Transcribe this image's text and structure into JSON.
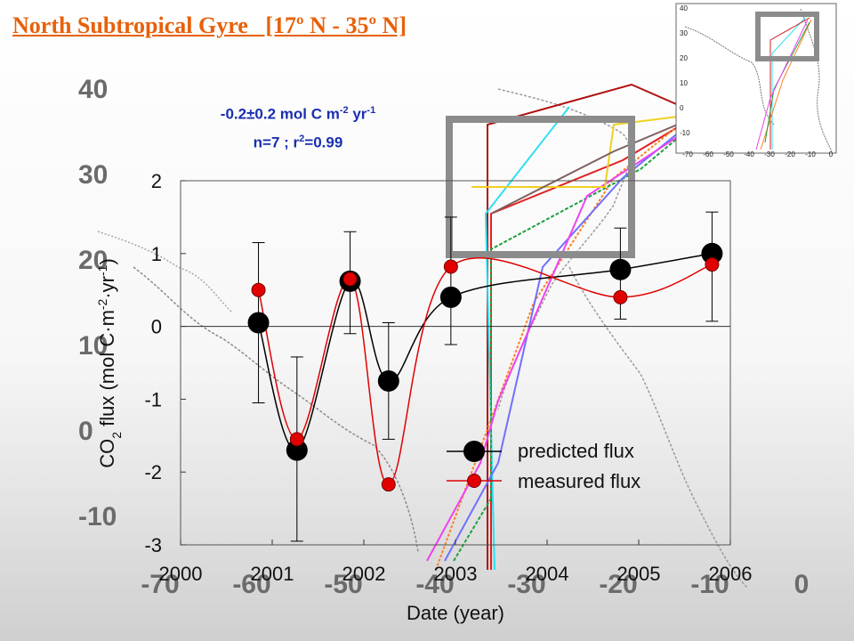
{
  "title": "North Subtropical Gyre   [17º N - 35º N]",
  "annotation": {
    "rate": "-0.2±0.2 mol C m",
    "rate_exp1": "-2",
    "rate_unit": " yr",
    "rate_exp2": "-1",
    "stats": "n=7  ;  r",
    "stats_exp": "2",
    "stats_tail": "=0.99",
    "color": "#1a2fb0"
  },
  "background_map": {
    "lat_ticks": [
      "40",
      "30",
      "20",
      "10",
      "0",
      "-10"
    ],
    "lon_ticks": [
      "-70",
      "-60",
      "-50",
      "-40",
      "-30",
      "-20",
      "-10",
      "0"
    ]
  },
  "inset_map": {
    "lat_ticks": [
      "40",
      "30",
      "20",
      "10",
      "0",
      "-10"
    ],
    "lon_ticks": [
      "-70",
      "-60",
      "-50",
      "-40",
      "-30",
      "-20",
      "-10",
      "0"
    ]
  },
  "chart_data": {
    "type": "scatter",
    "xlabel": "Date (year)",
    "ylabel": "CO2 flux (mol C·m-2·yr-1)",
    "ylabel_parts": {
      "a": "CO",
      "s1": "2",
      "b": " flux (mol C·m",
      "s2": "-2",
      "c": "·yr",
      "s3": "-1",
      "d": ")"
    },
    "xlim": [
      2000,
      2006
    ],
    "ylim": [
      -3,
      2
    ],
    "x_ticks": [
      "2000",
      "2001",
      "2002",
      "2003",
      "2004",
      "2005",
      "2006"
    ],
    "y_ticks": [
      "-3",
      "-2",
      "-1",
      "0",
      "1",
      "2"
    ],
    "zero_line": true,
    "legend_position": "bottom-right",
    "series": [
      {
        "name": "predicted flux",
        "color": "#000000",
        "marker": "large-black-circle",
        "points": [
          {
            "x": 2000.85,
            "y": 0.05,
            "err_low": -1.05,
            "err_high": 1.15
          },
          {
            "x": 2001.27,
            "y": -1.7,
            "err_low": -2.95,
            "err_high": -0.42
          },
          {
            "x": 2001.85,
            "y": 0.62,
            "err_low": -0.1,
            "err_high": 1.3
          },
          {
            "x": 2002.27,
            "y": -0.75,
            "err_low": -1.55,
            "err_high": 0.05
          },
          {
            "x": 2002.95,
            "y": 0.4,
            "err_low": null,
            "err_high": null
          },
          {
            "x": 2004.8,
            "y": 0.78,
            "err_low": 0.1,
            "err_high": 1.35
          },
          {
            "x": 2005.8,
            "y": 1.0,
            "err_low": 0.07,
            "err_high": 1.57
          }
        ]
      },
      {
        "name": "measured flux",
        "color": "#e00000",
        "marker": "red-circle",
        "points": [
          {
            "x": 2000.85,
            "y": 0.5
          },
          {
            "x": 2001.27,
            "y": -1.55
          },
          {
            "x": 2001.85,
            "y": 0.65
          },
          {
            "x": 2002.27,
            "y": -2.17
          },
          {
            "x": 2002.95,
            "y": 0.82
          },
          {
            "x": 2004.8,
            "y": 0.4
          },
          {
            "x": 2005.8,
            "y": 0.85
          }
        ]
      }
    ],
    "extra_error_bars": [
      {
        "x": 2002.95,
        "low": -0.25,
        "high": 1.5
      }
    ]
  }
}
